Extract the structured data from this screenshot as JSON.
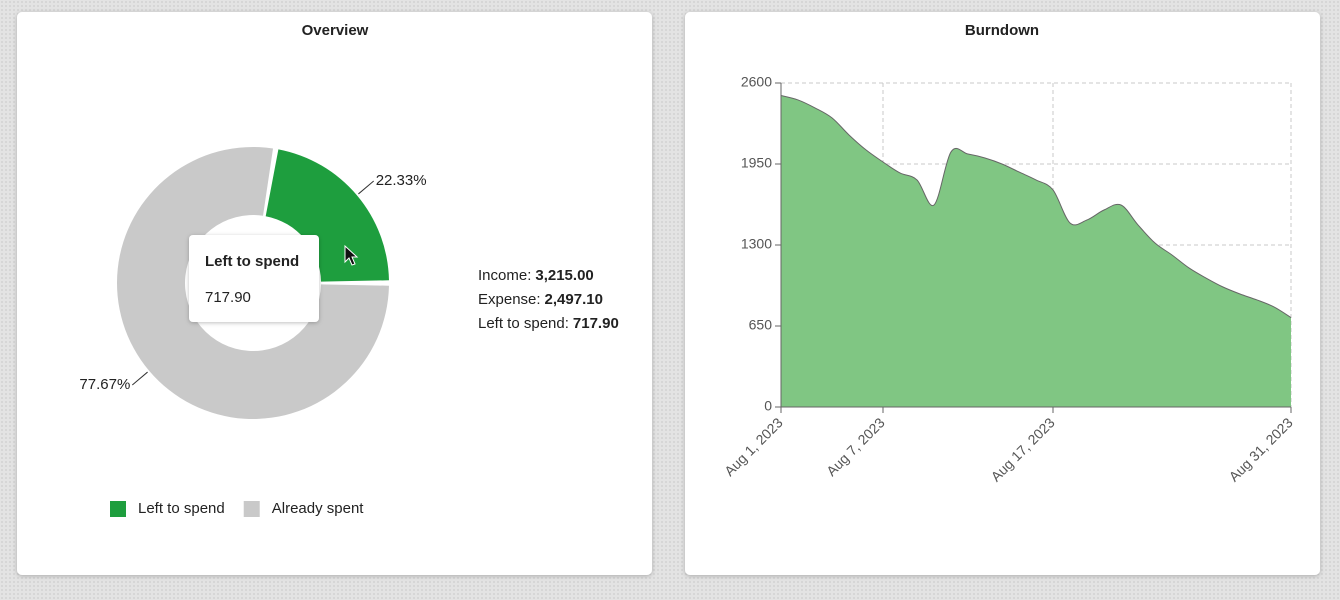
{
  "chart_data": [
    {
      "type": "pie",
      "title": "Overview",
      "categories": [
        "Left to spend",
        "Already spent"
      ],
      "values": [
        22.33,
        77.67
      ],
      "value_labels": [
        "22.33%",
        "77.67%"
      ],
      "colors": [
        "#1e9e3e",
        "#c9c9c9"
      ],
      "legend": "bottom"
    },
    {
      "type": "area",
      "title": "Burndown",
      "x": [
        "2023-08-01",
        "2023-08-02",
        "2023-08-03",
        "2023-08-04",
        "2023-08-05",
        "2023-08-06",
        "2023-08-07",
        "2023-08-08",
        "2023-08-09",
        "2023-08-10",
        "2023-08-11",
        "2023-08-12",
        "2023-08-13",
        "2023-08-14",
        "2023-08-15",
        "2023-08-16",
        "2023-08-17",
        "2023-08-18",
        "2023-08-19",
        "2023-08-20",
        "2023-08-21",
        "2023-08-22",
        "2023-08-23",
        "2023-08-24",
        "2023-08-25",
        "2023-08-26",
        "2023-08-27",
        "2023-08-28",
        "2023-08-29",
        "2023-08-30",
        "2023-08-31"
      ],
      "values": [
        2500,
        2464,
        2400,
        2320,
        2183,
        2063,
        1966,
        1878,
        1822,
        1621,
        2047,
        2030,
        1998,
        1950,
        1886,
        1822,
        1742,
        1477,
        1501,
        1581,
        1621,
        1461,
        1316,
        1220,
        1116,
        1035,
        963,
        907,
        859,
        803,
        718
      ],
      "color": "#80c683",
      "xlim": [
        "2023-08-01",
        "2023-08-31"
      ],
      "xticks": [
        {
          "value": "2023-08-01",
          "label": "Aug 1, 2023"
        },
        {
          "value": "2023-08-07",
          "label": "Aug 7, 2023"
        },
        {
          "value": "2023-08-17",
          "label": "Aug 17, 2023"
        },
        {
          "value": "2023-08-31",
          "label": "Aug 31, 2023"
        }
      ],
      "ylim": [
        0,
        2600
      ],
      "yticks": [
        0,
        650,
        1300,
        1950,
        2600
      ],
      "grid": true
    }
  ],
  "tooltip": {
    "title": "Left to spend",
    "value": "717.90"
  },
  "summary": [
    {
      "label": "Income:",
      "value": "3,215.00"
    },
    {
      "label": "Expense:",
      "value": "2,497.10"
    },
    {
      "label": "Left to spend:",
      "value": "717.90"
    }
  ]
}
